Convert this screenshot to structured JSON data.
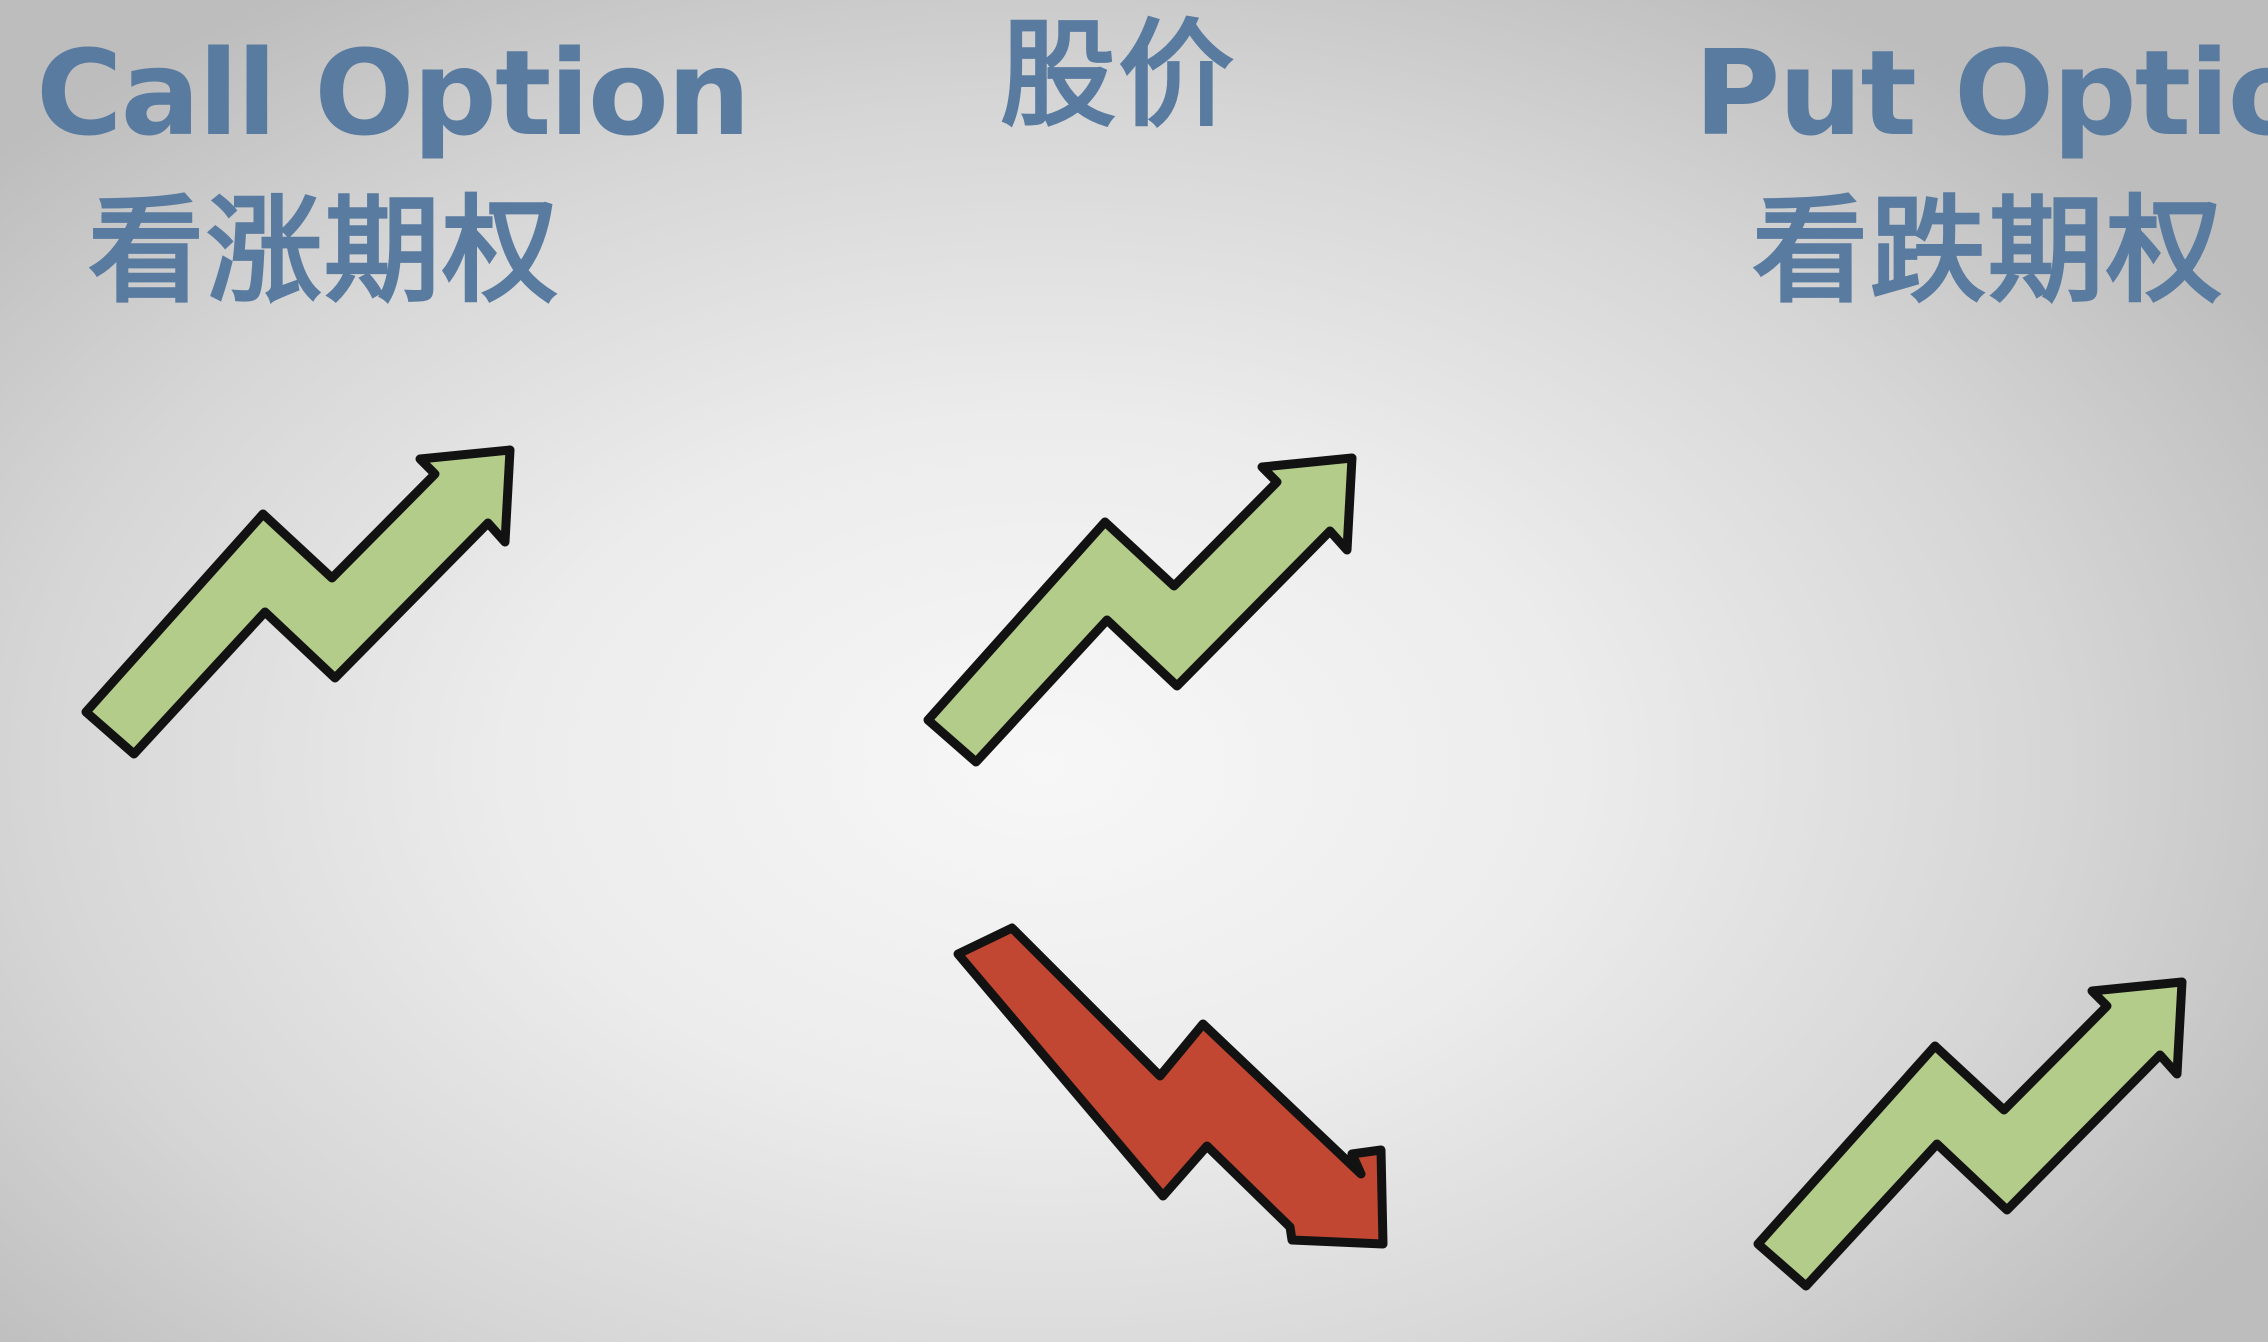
{
  "call": {
    "title": "Call Option",
    "subtitle": "看涨期权",
    "trend_icon": "up-arrow-icon"
  },
  "price": {
    "title": "股价",
    "up_icon": "up-arrow-icon",
    "down_icon": "down-arrow-icon"
  },
  "put": {
    "title": "Put Option",
    "subtitle": "看跌期权",
    "trend_icon": "up-arrow-icon"
  },
  "colors": {
    "text": "#5a7ba0",
    "up_arrow": "#b3cc8a",
    "down_arrow": "#c24732",
    "outline": "#121212"
  }
}
